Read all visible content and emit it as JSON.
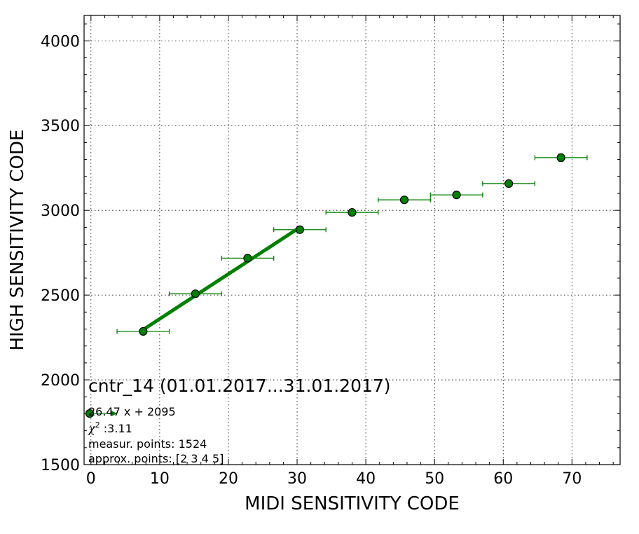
{
  "chart_data": {
    "type": "scatter",
    "title": "cntr_14 (01.01.2017...31.01.2017)",
    "xlabel": "MIDI SENSITIVITY CODE",
    "ylabel": "HIGH SENSITIVITY CODE",
    "xlim": [
      -1,
      77
    ],
    "ylim": [
      1500,
      4150
    ],
    "x_ticks": [
      0,
      10,
      20,
      30,
      40,
      50,
      60,
      70
    ],
    "y_ticks": [
      1500,
      2000,
      2500,
      3000,
      3500,
      4000
    ],
    "grid": true,
    "colors": {
      "series": "#008000",
      "marker_edge": "#000000"
    },
    "series": [
      {
        "x": [
          7.6,
          15.2,
          22.8,
          30.4,
          38.0,
          45.6,
          53.2,
          60.8,
          68.4
        ],
        "y": [
          2286,
          2508,
          2718,
          2886,
          2988,
          3062,
          3091,
          3158,
          3311
        ],
        "x_err": [
          3.8,
          3.8,
          3.8,
          3.8,
          3.8,
          3.8,
          3.8,
          3.8,
          3.8
        ],
        "y_err": [
          8,
          10,
          12,
          10,
          10,
          10,
          10,
          20,
          22
        ]
      }
    ],
    "fit": {
      "slope": 26.47,
      "intercept": 2095,
      "x_range": [
        7.6,
        30.4
      ]
    },
    "legend": {
      "location": "lower-left",
      "fit_label": "26.47 x + 2095",
      "chi2_symbol": "χ",
      "chi2_power": "2",
      "chi2_value": " :3.11",
      "measur_points": "measur. points: 1524",
      "approx_points": "approx. points: [2 3 4 5]"
    }
  }
}
